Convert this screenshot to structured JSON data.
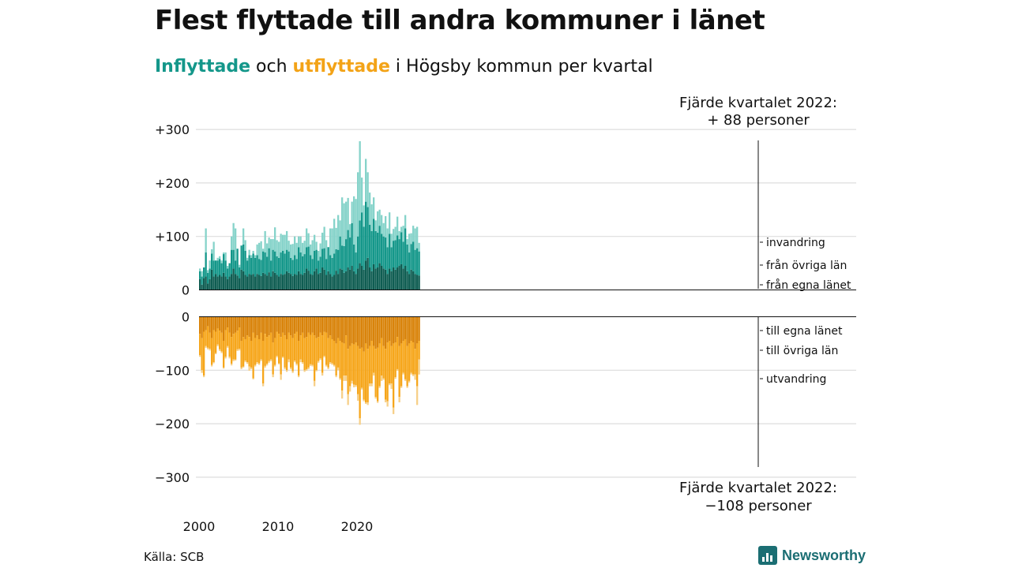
{
  "title": "Flest flyttade till andra kommuner i länet",
  "subtitle": {
    "part1": "Inflyttade",
    "part2": " och ",
    "part3": "utflyttade",
    "part4": " i Högsby kommun per kvartal"
  },
  "source": "Källa: SCB",
  "brand": "Newsworthy",
  "colors": {
    "in_egna": "#0f5d52",
    "in_ovriga": "#14978a",
    "in_invandring": "#86d3ca",
    "ut_egna": "#d9830a",
    "ut_ovriga": "#f6a61b",
    "ut_utvandring": "#f7d089",
    "inflyttade": "#14978a",
    "utflyttade": "#f3a317"
  },
  "chart_data": {
    "type": "bar",
    "title": "Flest flyttade till andra kommuner i länet",
    "subtitle": "Inflyttade och utflyttade i Högsby kommun per kvartal",
    "x_start_year": 2000,
    "x_ticks": [
      "2000",
      "2010",
      "2020"
    ],
    "y_ticks_top": [
      "+300",
      "+200",
      "+100",
      "0"
    ],
    "y_ticks_bottom": [
      "0",
      "−100",
      "−200",
      "−300"
    ],
    "ylim_top": [
      0,
      300
    ],
    "ylim_bottom": [
      -300,
      0
    ],
    "annotation_top": [
      "Fjärde kvartalet 2022:",
      "+ 88 personer"
    ],
    "annotation_bottom": [
      "Fjärde kvartalet 2022:",
      "−108 personer"
    ],
    "labels_in": [
      "invandring",
      "från övriga län",
      "från egna länet"
    ],
    "labels_out": [
      "till egna länet",
      "till övriga län",
      "utvandring"
    ],
    "inflyttade": {
      "from_egna_lanet": [
        20,
        10,
        22,
        25,
        12,
        20,
        38,
        25,
        30,
        25,
        28,
        25,
        32,
        25,
        20,
        25,
        30,
        40,
        30,
        27,
        22,
        38,
        35,
        28,
        25,
        30,
        28,
        30,
        25,
        30,
        28,
        26,
        32,
        30,
        27,
        33,
        25,
        35,
        32,
        28,
        25,
        30,
        28,
        30,
        35,
        32,
        30,
        26,
        30,
        28,
        35,
        30,
        28,
        32,
        40,
        36,
        30,
        28,
        35,
        40,
        30,
        32,
        42,
        38,
        28,
        35,
        30,
        25,
        28,
        36,
        30,
        40,
        38,
        32,
        35,
        42,
        38,
        45,
        35,
        30,
        40,
        50,
        45,
        38,
        55,
        60,
        42,
        35,
        48,
        40,
        42,
        50,
        45,
        40,
        38,
        30,
        40,
        35,
        42,
        38,
        42,
        45,
        48,
        40,
        45,
        35,
        30,
        38,
        35,
        30,
        28,
        27
      ],
      "from_ovriga_lan": [
        15,
        15,
        20,
        45,
        20,
        20,
        30,
        30,
        25,
        30,
        30,
        25,
        35,
        30,
        20,
        25,
        45,
        35,
        25,
        50,
        20,
        45,
        50,
        45,
        30,
        35,
        32,
        38,
        35,
        35,
        30,
        30,
        40,
        40,
        35,
        45,
        30,
        40,
        40,
        35,
        35,
        40,
        45,
        38,
        40,
        40,
        30,
        30,
        35,
        30,
        45,
        40,
        35,
        35,
        40,
        45,
        35,
        30,
        38,
        35,
        25,
        30,
        35,
        40,
        30,
        45,
        35,
        35,
        40,
        40,
        45,
        60,
        45,
        50,
        60,
        70,
        60,
        80,
        50,
        40,
        60,
        80,
        100,
        80,
        110,
        95,
        80,
        75,
        85,
        70,
        65,
        70,
        60,
        60,
        60,
        50,
        65,
        45,
        50,
        55,
        60,
        50,
        60,
        50,
        70,
        50,
        40,
        48,
        55,
        45,
        50,
        45
      ],
      "invandring": [
        5,
        10,
        0,
        45,
        5,
        15,
        8,
        35,
        0,
        5,
        5,
        5,
        3,
        15,
        5,
        0,
        25,
        50,
        60,
        0,
        5,
        0,
        30,
        20,
        5,
        10,
        5,
        5,
        5,
        20,
        30,
        35,
        5,
        40,
        25,
        20,
        40,
        20,
        45,
        30,
        30,
        35,
        30,
        35,
        35,
        20,
        25,
        30,
        35,
        30,
        20,
        30,
        25,
        25,
        35,
        25,
        20,
        35,
        30,
        15,
        18,
        25,
        30,
        40,
        35,
        0,
        50,
        55,
        65,
        40,
        65,
        30,
        90,
        80,
        70,
        60,
        25,
        40,
        90,
        100,
        120,
        148,
        65,
        40,
        80,
        65,
        60,
        50,
        40,
        20,
        40,
        30,
        35,
        25,
        40,
        35,
        40,
        25,
        22,
        25,
        35,
        15,
        10,
        30,
        25,
        10,
        35,
        20,
        30,
        40,
        40,
        16
      ]
    },
    "utflyttade": {
      "till_egna_lanet": [
        -32,
        -40,
        -28,
        -25,
        -18,
        -30,
        -40,
        -25,
        -28,
        -22,
        -26,
        -30,
        -45,
        -25,
        -20,
        -30,
        -38,
        -32,
        -30,
        -26,
        -20,
        -45,
        -38,
        -42,
        -35,
        -38,
        -45,
        -30,
        -40,
        -35,
        -42,
        -30,
        -45,
        -32,
        -38,
        -35,
        -30,
        -48,
        -40,
        -28,
        -32,
        -38,
        -30,
        -35,
        -42,
        -30,
        -35,
        -40,
        -32,
        -28,
        -45,
        -35,
        -30,
        -40,
        -38,
        -30,
        -34,
        -30,
        -35,
        -40,
        -38,
        -30,
        -35,
        -28,
        -30,
        -40,
        -35,
        -42,
        -45,
        -50,
        -40,
        -45,
        -48,
        -50,
        -35,
        -60,
        -55,
        -50,
        -52,
        -48,
        -55,
        -60,
        -58,
        -65,
        -50,
        -60,
        -55,
        -45,
        -55,
        -60,
        -58,
        -50,
        -40,
        -55,
        -60,
        -48,
        -45,
        -55,
        -50,
        -48,
        -38,
        -55,
        -50,
        -45,
        -42,
        -55,
        -50,
        -45,
        -48,
        -60,
        -50,
        -45
      ],
      "till_ovriga_lan": [
        -40,
        -60,
        -82,
        -30,
        -40,
        -30,
        -50,
        -60,
        -40,
        -30,
        -35,
        -35,
        -50,
        -50,
        -35,
        -45,
        -50,
        -48,
        -50,
        -35,
        -40,
        -50,
        -55,
        -40,
        -50,
        -55,
        -50,
        -85,
        -50,
        -50,
        -45,
        -50,
        -80,
        -60,
        -50,
        -48,
        -50,
        -60,
        -50,
        -45,
        -55,
        -70,
        -45,
        -60,
        -58,
        -50,
        -60,
        -62,
        -50,
        -60,
        -65,
        -45,
        -55,
        -60,
        -60,
        -65,
        -55,
        -60,
        -85,
        -60,
        -45,
        -48,
        -70,
        -45,
        -60,
        -55,
        -50,
        -45,
        -45,
        -60,
        -55,
        -70,
        -90,
        -60,
        -75,
        -85,
        -75,
        -70,
        -75,
        -80,
        -90,
        -130,
        -75,
        -90,
        -110,
        -100,
        -70,
        -80,
        -50,
        -90,
        -100,
        -80,
        -70,
        -60,
        -95,
        -110,
        -80,
        -70,
        -120,
        -65,
        -60,
        -95,
        -80,
        -60,
        -75,
        -75,
        -70,
        -60,
        -60,
        -48,
        -80,
        -35
      ],
      "utvandring": [
        -3,
        -5,
        -3,
        -3,
        -3,
        -3,
        -3,
        -2,
        -2,
        -3,
        -3,
        -3,
        -2,
        -3,
        -3,
        -3,
        -3,
        -3,
        -2,
        -3,
        -3,
        -3,
        -2,
        -3,
        -3,
        -8,
        -3,
        -2,
        -3,
        -3,
        -3,
        -3,
        -5,
        -3,
        -3,
        -3,
        -3,
        -5,
        -3,
        -3,
        -2,
        -10,
        -2,
        -3,
        -3,
        -5,
        -3,
        -3,
        -3,
        -3,
        -3,
        -5,
        -3,
        -3,
        -3,
        -3,
        -3,
        -3,
        -10,
        -2,
        -3,
        -3,
        -5,
        -3,
        -3,
        -3,
        -3,
        -3,
        -3,
        -3,
        -5,
        -3,
        -15,
        -10,
        -10,
        -20,
        -10,
        -5,
        -5,
        -3,
        -12,
        -12,
        -3,
        -3,
        -3,
        -5,
        -5,
        -5,
        -5,
        -3,
        -3,
        -3,
        -10,
        -3,
        -5,
        -10,
        -3,
        -10,
        -12,
        -3,
        -3,
        -10,
        -3,
        -3,
        -3,
        -3,
        -3,
        -3,
        -3,
        -10,
        -35,
        -28
      ]
    }
  }
}
